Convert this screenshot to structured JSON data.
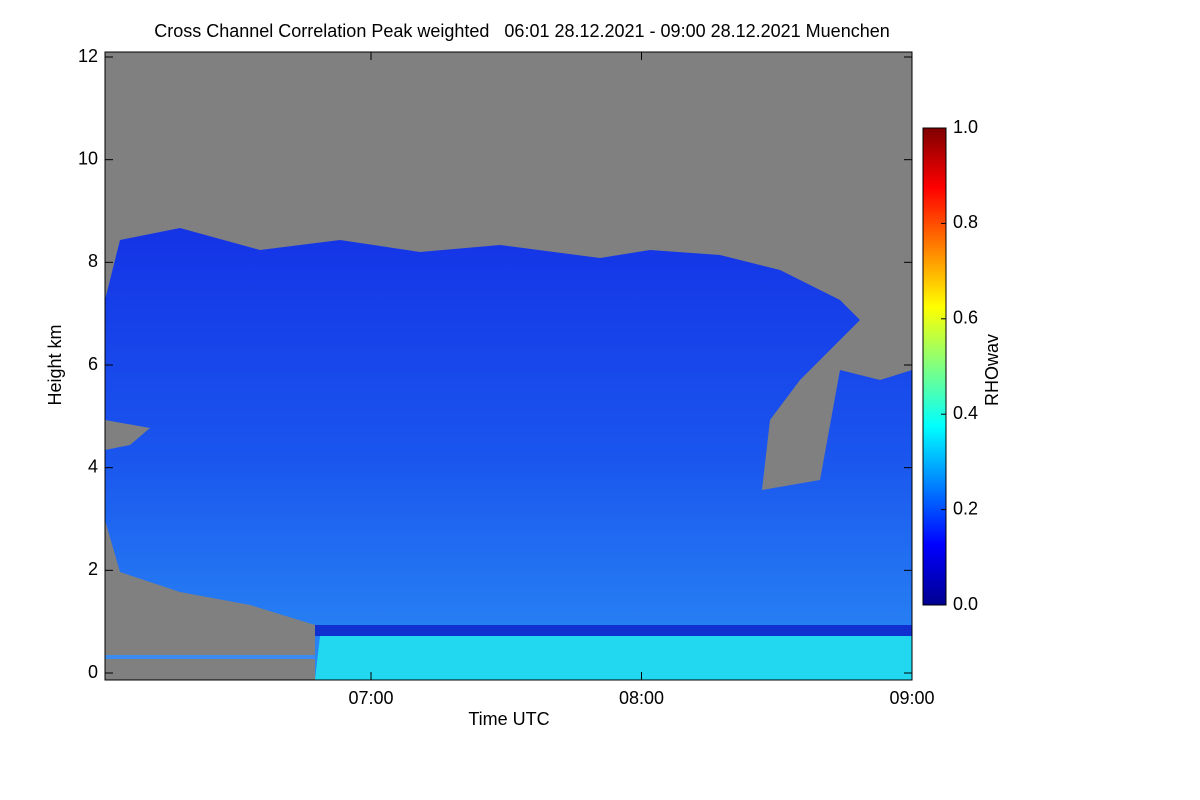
{
  "chart_data": {
    "type": "heatmap",
    "title": "Cross Channel Correlation Peak weighted   06:01 28.12.2021 - 09:00 28.12.2021 Muenchen",
    "x_label": "Time UTC",
    "y_label": "Height km",
    "xlim": [
      "06:01",
      "09:00"
    ],
    "xticks": [
      "07:00",
      "08:00",
      "09:00"
    ],
    "ylim": [
      0,
      12
    ],
    "yticks": [
      0,
      2,
      4,
      6,
      8,
      10,
      12
    ],
    "colorbar_label": "RHOwav",
    "colormap": "jet",
    "clim": [
      0,
      1
    ],
    "colorbar_ticks": [
      {
        "value": 0,
        "label": "0.0"
      },
      {
        "value": 0.2,
        "label": "0.2"
      },
      {
        "value": 0.4,
        "label": "0.4"
      },
      {
        "value": 0.6,
        "label": "0.6"
      },
      {
        "value": 0.8,
        "label": "0.8"
      },
      {
        "value": 1,
        "label": "1.0"
      }
    ]
  }
}
